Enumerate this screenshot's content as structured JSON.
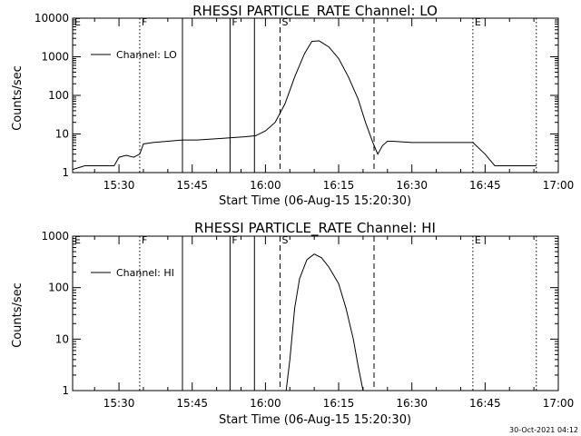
{
  "footer_timestamp": "30-Oct-2021 04:12",
  "chart_data": [
    {
      "type": "line",
      "title": "RHESSI PARTICLE_RATE Channel: LO",
      "xlabel": "Start Time (06-Aug-15 15:20:30)",
      "ylabel": "Counts/sec",
      "yscale": "log",
      "xlim": [
        "15:20:30",
        "17:00:00"
      ],
      "ylim": [
        1,
        10000
      ],
      "xticks": [
        "15:30",
        "15:45",
        "16:00",
        "16:15",
        "16:30",
        "16:45",
        "17:00"
      ],
      "yticks": [
        "1",
        "10",
        "100",
        "1000",
        "10000"
      ],
      "legend": {
        "position": "top-left",
        "label": "Channel: LO"
      },
      "markers": [
        {
          "label": "E",
          "time": "15:20:30",
          "style": "dotted"
        },
        {
          "label": "F",
          "time": "15:34:15",
          "style": "dotted"
        },
        {
          "label": "",
          "time": "15:43:00",
          "style": "solid"
        },
        {
          "label": "F",
          "time": "15:52:45",
          "style": "solid"
        },
        {
          "label": "",
          "time": "15:57:45",
          "style": "solid"
        },
        {
          "label": "S",
          "time": "16:03:00",
          "style": "dashed"
        },
        {
          "label": "",
          "time": "16:22:15",
          "style": "dashed"
        },
        {
          "label": "E",
          "time": "16:42:30",
          "style": "dotted"
        },
        {
          "label": "",
          "time": "16:55:30",
          "style": "dotted"
        }
      ],
      "series": [
        {
          "name": "Channel: LO",
          "x": [
            "15:20:30",
            "15:23:00",
            "15:25:30",
            "15:28:00",
            "15:29:00",
            "15:30:00",
            "15:31:30",
            "15:33:00",
            "15:34:15",
            "15:35:00",
            "15:37:00",
            "15:40:00",
            "15:43:00",
            "15:46:00",
            "15:50:00",
            "15:53:00",
            "15:56:00",
            "15:58:00",
            "16:00:00",
            "16:02:00",
            "16:04:00",
            "16:06:00",
            "16:08:00",
            "16:09:30",
            "16:11:00",
            "16:13:00",
            "16:15:00",
            "16:17:00",
            "16:19:00",
            "16:20:30",
            "16:22:00",
            "16:23:00",
            "16:24:00",
            "16:25:00",
            "16:26:00",
            "16:30:00",
            "16:35:00",
            "16:40:00",
            "16:42:30",
            "16:45:00",
            "16:47:00",
            "16:50:00",
            "16:53:00",
            "16:55:30"
          ],
          "y": [
            1.2,
            1.5,
            1.5,
            1.5,
            1.5,
            2.5,
            2.8,
            2.5,
            3.0,
            5.5,
            6.0,
            6.5,
            7.0,
            7.0,
            7.5,
            8.0,
            8.5,
            9.0,
            12,
            20,
            60,
            300,
            1200,
            2500,
            2600,
            1800,
            900,
            300,
            80,
            20,
            6,
            3,
            5,
            6.5,
            6.5,
            6.0,
            6.0,
            6.0,
            6.0,
            3.0,
            1.5,
            1.5,
            1.5,
            1.5
          ]
        }
      ]
    },
    {
      "type": "line",
      "title": "RHESSI PARTICLE_RATE Channel: HI",
      "xlabel": "Start Time (06-Aug-15 15:20:30)",
      "ylabel": "Counts/sec",
      "yscale": "log",
      "xlim": [
        "15:20:30",
        "17:00:00"
      ],
      "ylim": [
        1,
        1000
      ],
      "xticks": [
        "15:30",
        "15:45",
        "16:00",
        "16:15",
        "16:30",
        "16:45",
        "17:00"
      ],
      "yticks": [
        "1",
        "10",
        "100",
        "1000"
      ],
      "legend": {
        "position": "top-left",
        "label": "Channel: HI"
      },
      "markers": [
        {
          "label": "E",
          "time": "15:20:30",
          "style": "dotted"
        },
        {
          "label": "F",
          "time": "15:34:15",
          "style": "dotted"
        },
        {
          "label": "",
          "time": "15:43:00",
          "style": "solid"
        },
        {
          "label": "F",
          "time": "15:52:45",
          "style": "solid"
        },
        {
          "label": "",
          "time": "15:57:45",
          "style": "solid"
        },
        {
          "label": "S",
          "time": "16:03:00",
          "style": "dashed"
        },
        {
          "label": "",
          "time": "16:22:15",
          "style": "dashed"
        },
        {
          "label": "E",
          "time": "16:42:30",
          "style": "dotted"
        },
        {
          "label": "",
          "time": "16:55:30",
          "style": "dotted"
        }
      ],
      "series": [
        {
          "name": "Channel: HI",
          "x": [
            "16:04:15",
            "16:05:00",
            "16:06:00",
            "16:07:00",
            "16:08:30",
            "16:10:00",
            "16:11:30",
            "16:13:00",
            "16:15:00",
            "16:16:30",
            "16:18:00",
            "16:19:00",
            "16:20:00"
          ],
          "y": [
            1.0,
            4,
            40,
            150,
            350,
            450,
            380,
            250,
            120,
            40,
            10,
            3,
            1.0
          ]
        }
      ]
    }
  ]
}
